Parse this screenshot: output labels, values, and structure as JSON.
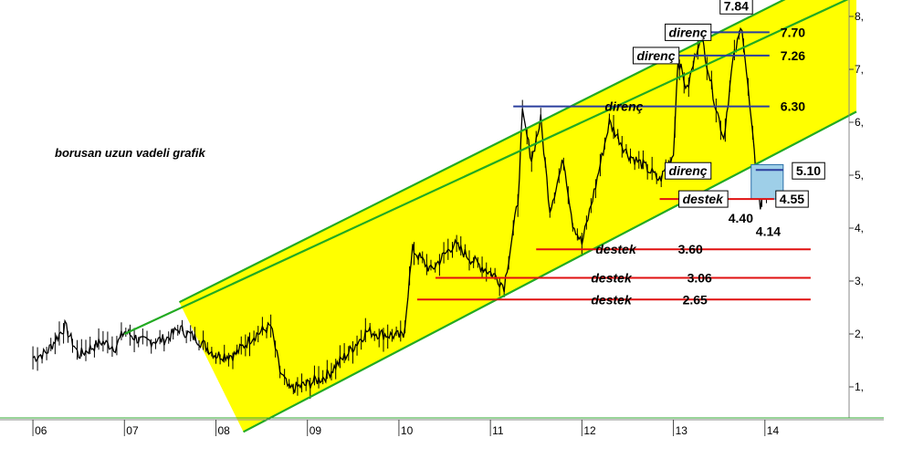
{
  "chart_data": {
    "type": "line",
    "title": "borusan uzun vadeli grafik",
    "x_ticks": [
      "06",
      "07",
      "08",
      "09",
      "10",
      "11",
      "12",
      "13",
      "14"
    ],
    "y_ticks": [
      "1,",
      "2,",
      "3,",
      "4,",
      "5,",
      "6,",
      "7,",
      "8,"
    ],
    "ylim": [
      0.5,
      8.3
    ],
    "grid": false,
    "series": [
      {
        "values": [
          [
            2006.0,
            1.55
          ],
          [
            2006.15,
            1.65
          ],
          [
            2006.35,
            2.15
          ],
          [
            2006.5,
            1.6
          ],
          [
            2006.75,
            1.85
          ],
          [
            2006.9,
            1.75
          ],
          [
            2007.0,
            2.05
          ],
          [
            2007.2,
            1.85
          ],
          [
            2007.45,
            1.9
          ],
          [
            2007.6,
            2.1
          ],
          [
            2007.8,
            1.9
          ],
          [
            2008.0,
            1.6
          ],
          [
            2008.2,
            1.6
          ],
          [
            2008.4,
            1.95
          ],
          [
            2008.6,
            2.15
          ],
          [
            2008.7,
            1.3
          ],
          [
            2008.8,
            0.95
          ],
          [
            2009.0,
            1.05
          ],
          [
            2009.2,
            1.2
          ],
          [
            2009.45,
            1.65
          ],
          [
            2009.65,
            2.05
          ],
          [
            2009.8,
            2.0
          ],
          [
            2010.05,
            1.95
          ],
          [
            2010.15,
            3.6
          ],
          [
            2010.35,
            3.2
          ],
          [
            2010.6,
            3.7
          ],
          [
            2010.8,
            3.4
          ],
          [
            2011.05,
            3.1
          ],
          [
            2011.15,
            2.9
          ],
          [
            2011.3,
            4.5
          ],
          [
            2011.35,
            6.15
          ],
          [
            2011.45,
            5.3
          ],
          [
            2011.55,
            6.05
          ],
          [
            2011.65,
            4.35
          ],
          [
            2011.8,
            5.3
          ],
          [
            2011.9,
            4.1
          ],
          [
            2012.0,
            3.7
          ],
          [
            2012.15,
            4.8
          ],
          [
            2012.3,
            6.0
          ],
          [
            2012.5,
            5.4
          ],
          [
            2012.7,
            5.15
          ],
          [
            2012.85,
            4.9
          ],
          [
            2013.0,
            5.4
          ],
          [
            2013.05,
            7.2
          ],
          [
            2013.15,
            6.6
          ],
          [
            2013.3,
            7.7
          ],
          [
            2013.45,
            6.4
          ],
          [
            2013.55,
            5.7
          ],
          [
            2013.65,
            7.15
          ],
          [
            2013.75,
            7.84
          ],
          [
            2013.85,
            6.0
          ],
          [
            2013.9,
            5.1
          ],
          [
            2013.95,
            4.4
          ],
          [
            2014.0,
            4.7
          ],
          [
            2014.05,
            4.55
          ]
        ]
      }
    ],
    "channel": {
      "color": "#ffff00",
      "edge_color": "#22aa22",
      "upper": [
        [
          2007.6,
          2.6
        ],
        [
          2015.0,
          9.0
        ]
      ],
      "middle": [
        [
          2007.0,
          2.0
        ],
        [
          2015.0,
          8.4
        ]
      ],
      "lower": [
        [
          2008.3,
          0.15
        ],
        [
          2015.0,
          6.2
        ]
      ]
    },
    "resistance_lines": [
      {
        "label": "direnç",
        "value": "7.70",
        "y": 7.7,
        "x_start": 2013.3,
        "x_end": 2014.05
      },
      {
        "label": "direnç",
        "value": "7.26",
        "y": 7.26,
        "x_start": 2013.05,
        "x_end": 2014.05
      },
      {
        "label": "direnç",
        "value": "6.30",
        "y": 6.3,
        "x_start": 2011.25,
        "x_end": 2014.05
      },
      {
        "label": "direnç",
        "value": "5.10",
        "y": 5.1,
        "x_start": 2013.9,
        "x_end": 2014.2
      }
    ],
    "support_lines": [
      {
        "label": "destek",
        "value": "4.55",
        "y": 4.55,
        "x_start": 2012.85,
        "x_end": 2014.1
      },
      {
        "label": "destek",
        "value": "3.60",
        "y": 3.6,
        "x_start": 2011.5,
        "x_end": 2014.5
      },
      {
        "label": "destek",
        "value": "3.06",
        "y": 3.06,
        "x_start": 2010.4,
        "x_end": 2014.5
      },
      {
        "label": "destek",
        "value": "2.65",
        "y": 2.65,
        "x_start": 2010.2,
        "x_end": 2014.5
      }
    ],
    "annotations": [
      {
        "text": "7.84",
        "x": 2013.75,
        "y": 7.84
      },
      {
        "text": "4.40",
        "x": 2013.8,
        "y": 4.1
      },
      {
        "text": "4.14",
        "x": 2014.1,
        "y": 3.85
      }
    ],
    "highlight_box": {
      "x0": 2013.85,
      "x1": 2014.2,
      "y0": 4.55,
      "y1": 5.2,
      "color": "#9ecfe8"
    }
  }
}
